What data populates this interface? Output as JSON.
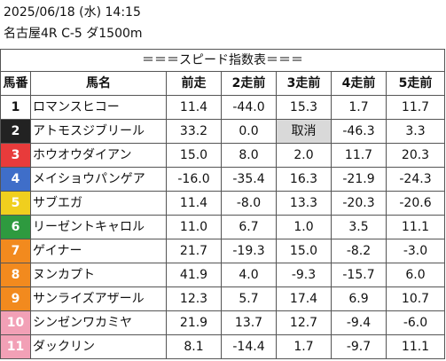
{
  "header": {
    "line1": "2025/06/18 (水) 14:15",
    "line2": "名古屋4R C-5 ダ1500m"
  },
  "title": "＝＝＝スピード指数表＝＝＝",
  "columns": [
    "馬番",
    "馬名",
    "前走",
    "2走前",
    "3走前",
    "4走前",
    "5走前"
  ],
  "rows": [
    {
      "num": "1",
      "color": "#ffffff",
      "text": "#111111",
      "name": "ロマンスヒコー",
      "v": [
        "11.4",
        "-44.0",
        "15.3",
        "1.7",
        "11.7"
      ]
    },
    {
      "num": "2",
      "color": "#222222",
      "text": "#ffffff",
      "name": "アトモスジブリール",
      "v": [
        "33.2",
        "0.0",
        "取消",
        "-46.3",
        "3.3"
      ]
    },
    {
      "num": "3",
      "color": "#e83b3b",
      "text": "#ffffff",
      "name": "ホウオウダイアン",
      "v": [
        "15.0",
        "8.0",
        "2.0",
        "11.7",
        "20.3"
      ]
    },
    {
      "num": "4",
      "color": "#3f6ec9",
      "text": "#ffffff",
      "name": "メイショウパンゲア",
      "v": [
        "-16.0",
        "-35.4",
        "16.3",
        "-21.9",
        "-24.3"
      ]
    },
    {
      "num": "5",
      "color": "#f0cf1e",
      "text": "#ffffff",
      "name": "サブエガ",
      "v": [
        "11.4",
        "-8.0",
        "13.3",
        "-20.3",
        "-20.6"
      ]
    },
    {
      "num": "6",
      "color": "#2e9a3f",
      "text": "#ffffff",
      "name": "リーゼントキャロル",
      "v": [
        "11.0",
        "6.7",
        "1.0",
        "3.5",
        "11.1"
      ]
    },
    {
      "num": "7",
      "color": "#f28a1e",
      "text": "#ffffff",
      "name": "ゲイナー",
      "v": [
        "21.7",
        "-19.3",
        "15.0",
        "-8.2",
        "-3.0"
      ]
    },
    {
      "num": "8",
      "color": "#f28a1e",
      "text": "#ffffff",
      "name": "ヌンカプト",
      "v": [
        "41.9",
        "4.0",
        "-9.3",
        "-15.7",
        "6.0"
      ]
    },
    {
      "num": "9",
      "color": "#f28a1e",
      "text": "#ffffff",
      "name": "サンライズアザール",
      "v": [
        "12.3",
        "5.7",
        "17.4",
        "6.9",
        "10.7"
      ]
    },
    {
      "num": "10",
      "color": "#f2a0b6",
      "text": "#ffffff",
      "name": "シンゼンワカミヤ",
      "v": [
        "21.9",
        "13.7",
        "12.7",
        "-9.4",
        "-6.0"
      ]
    },
    {
      "num": "11",
      "color": "#f2a0b6",
      "text": "#ffffff",
      "name": "ダックリン",
      "v": [
        "8.1",
        "-14.4",
        "1.7",
        "-9.7",
        "11.1"
      ]
    }
  ]
}
